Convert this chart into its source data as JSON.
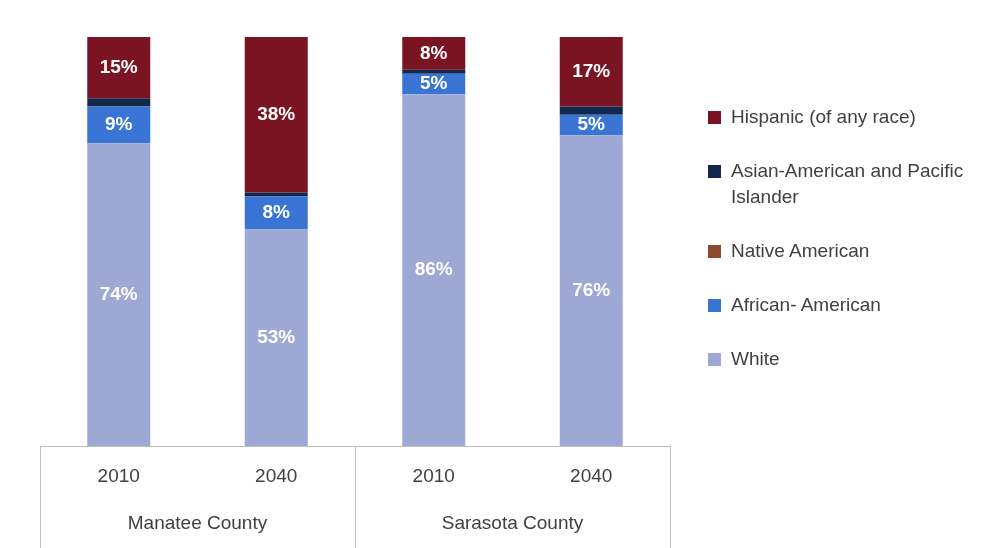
{
  "chart_data": {
    "type": "bar",
    "stacked": true,
    "categories": [
      "2010",
      "2040",
      "2010",
      "2040"
    ],
    "annotations": [
      "Manatee County",
      "Sarasota County"
    ],
    "series": [
      {
        "name": "White",
        "color": "#9ea8d4",
        "values": [
          74,
          53,
          86,
          76
        ],
        "value_labels": [
          "74%",
          "53%",
          "86%",
          "76%"
        ]
      },
      {
        "name": "African- American",
        "color": "#3a75d6",
        "values": [
          9,
          8,
          5,
          5
        ],
        "value_labels": [
          "9%",
          "8%",
          "5%",
          "5%"
        ]
      },
      {
        "name": "Native American",
        "color": "#8b4a2f",
        "values": [
          0,
          0,
          0,
          0
        ]
      },
      {
        "name": "Asian-American and Pacific Islander",
        "color": "#13294b",
        "values": [
          2,
          1,
          1,
          2
        ]
      },
      {
        "name": "Hispanic (of any race)",
        "color": "#7b1422",
        "values": [
          15,
          38,
          8,
          17
        ],
        "value_labels": [
          "15%",
          "38%",
          "8%",
          "17%"
        ]
      }
    ],
    "legend": "right"
  }
}
